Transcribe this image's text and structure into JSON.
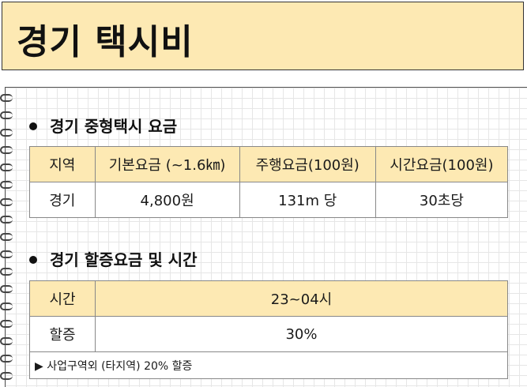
{
  "title": "경기 택시비",
  "section1": {
    "heading": "경기 중형택시 요금",
    "headers": [
      "지역",
      "기본요금 (~1.6㎞)",
      "주행요금(100원)",
      "시간요금(100원)"
    ],
    "row": [
      "경기",
      "4,800원",
      "131m 당",
      "30초당"
    ]
  },
  "section2": {
    "heading": "경기 할증요금 및 시간",
    "rows": [
      {
        "label": "시간",
        "value": "23~04시"
      },
      {
        "label": "할증",
        "value": "30%"
      }
    ],
    "note": "▶ 사업구역외 (타지역) 20% 할증"
  }
}
